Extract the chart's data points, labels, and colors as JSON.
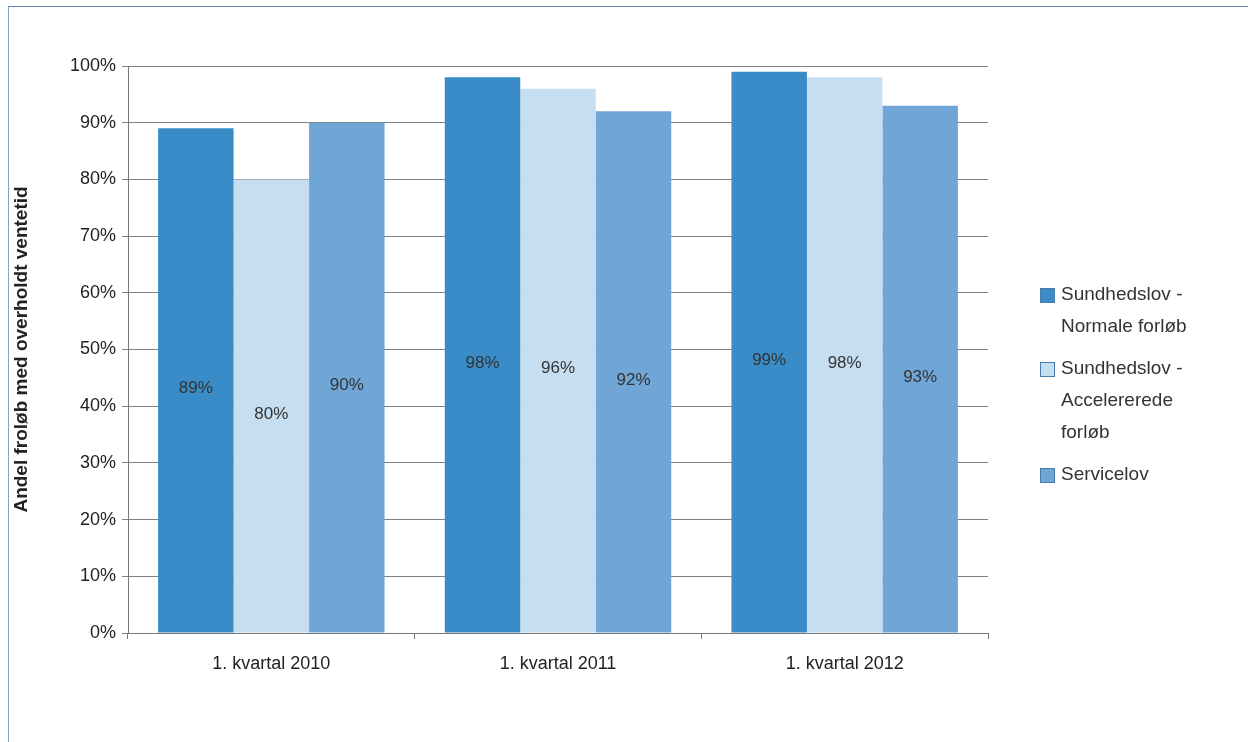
{
  "chart_data": {
    "type": "bar",
    "ylabel": "Andel froløb med overholdt ventetid",
    "categories": [
      "1. kvartal 2010",
      "1. kvartal 2011",
      "1. kvartal 2012"
    ],
    "series": [
      {
        "name": "Sundhedslov - Normale forløb",
        "color": "#3a8cc8",
        "values": [
          89,
          98,
          99
        ],
        "value_labels": [
          "89%",
          "98%",
          "99%"
        ]
      },
      {
        "name": "Sundhedslov - Accelererede forløb",
        "color": "#c6def2",
        "values": [
          80,
          96,
          98
        ],
        "value_labels": [
          "80%",
          "96%",
          "98%"
        ]
      },
      {
        "name": "Servicelov",
        "color": "#6fa6d6",
        "values": [
          90,
          92,
          93
        ],
        "value_labels": [
          "90%",
          "92%",
          "93%"
        ]
      }
    ],
    "ylim": [
      0,
      100
    ],
    "yticks": [
      {
        "value": 0,
        "label": "0%"
      },
      {
        "value": 10,
        "label": "10%"
      },
      {
        "value": 20,
        "label": "20%"
      },
      {
        "value": 30,
        "label": "30%"
      },
      {
        "value": 40,
        "label": "40%"
      },
      {
        "value": 50,
        "label": "50%"
      },
      {
        "value": 60,
        "label": "60%"
      },
      {
        "value": 70,
        "label": "70%"
      },
      {
        "value": 80,
        "label": "80%"
      },
      {
        "value": 90,
        "label": "90%"
      },
      {
        "value": 100,
        "label": "100%"
      }
    ],
    "grid": "y",
    "legend": "right"
  }
}
